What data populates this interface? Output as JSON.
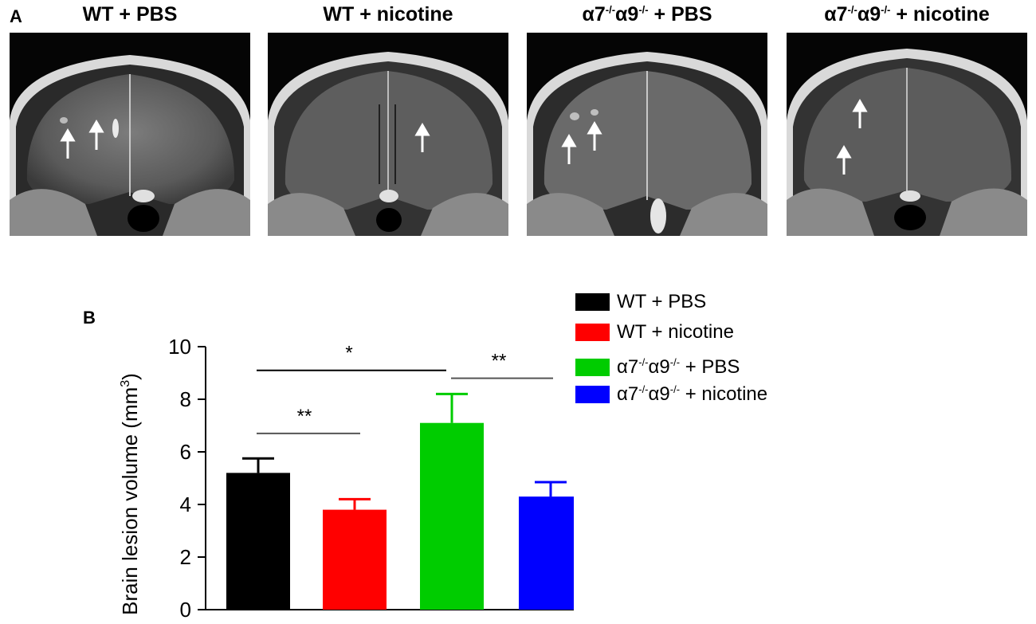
{
  "panel_a": {
    "letter": "A",
    "images": [
      {
        "title": "WT + PBS",
        "arrows": 2
      },
      {
        "title": "WT + nicotine",
        "arrows": 1
      },
      {
        "title_parts": [
          "α7",
          "-/-",
          "α9",
          "-/-",
          " + PBS"
        ],
        "arrows": 2
      },
      {
        "title_parts": [
          "α7",
          "-/-",
          "α9",
          "-/-",
          " + nicotine"
        ],
        "arrows": 2
      }
    ]
  },
  "panel_b": {
    "letter": "B"
  },
  "chart_data": {
    "type": "bar",
    "ylabel": "Brain lesion volume (mm",
    "ylabel_sup": "3",
    "ylabel_close": ")",
    "ylim": [
      0,
      10
    ],
    "yticks": [
      0,
      2,
      4,
      6,
      8,
      10
    ],
    "categories": [
      "WT + PBS",
      "WT + nicotine",
      "α7-/-α9-/- + PBS",
      "α7-/-α9-/- + nicotine"
    ],
    "values": [
      5.2,
      3.8,
      7.1,
      4.3
    ],
    "errors": [
      0.55,
      0.4,
      1.1,
      0.55
    ],
    "colors": [
      "#000000",
      "#ff0000",
      "#00cc00",
      "#0000ff"
    ],
    "significance": [
      {
        "from": 0,
        "to": 2,
        "label": "*",
        "y": 9.1
      },
      {
        "from": 0,
        "to": 1,
        "label": "**",
        "y": 6.7
      },
      {
        "from": 2,
        "to": 3,
        "label": "**",
        "y": 8.8
      }
    ],
    "legend": [
      {
        "parts": [
          "WT + PBS"
        ],
        "color": "#000000"
      },
      {
        "parts": [
          "WT + nicotine"
        ],
        "color": "#ff0000"
      },
      {
        "parts": [
          "α7",
          "-/-",
          "α9",
          "-/-",
          " + PBS"
        ],
        "color": "#00cc00"
      },
      {
        "parts": [
          "α7",
          "-/-",
          "α9",
          "-/-",
          " + nicotine"
        ],
        "color": "#0000ff"
      }
    ]
  }
}
